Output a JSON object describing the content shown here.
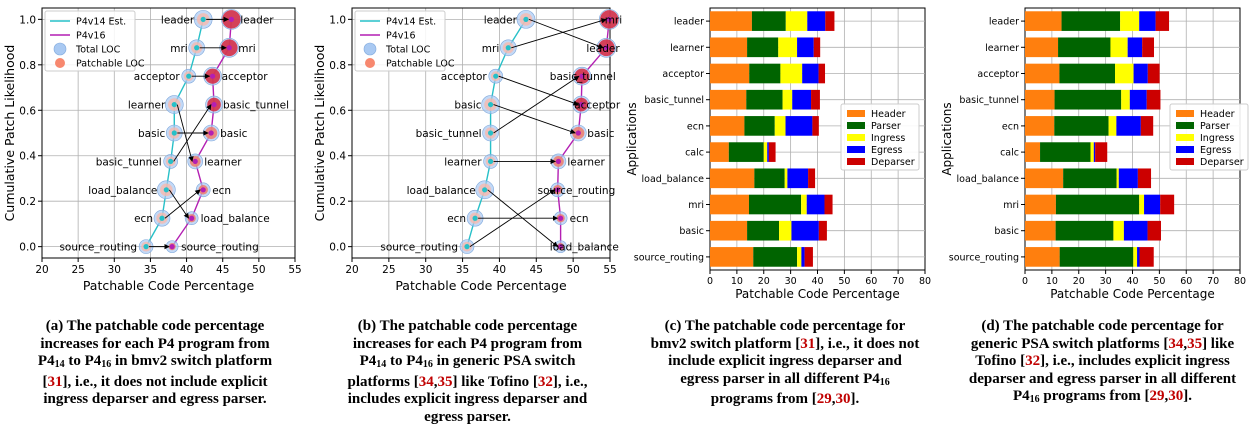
{
  "charts": [
    {
      "id": "a",
      "type": "scatter",
      "xlabel": "Patchable Code Percentage",
      "ylabel": "Cumulative Patch Likelihood",
      "xlim": [
        20,
        55
      ],
      "ylim": [
        -0.05,
        1.05
      ],
      "xticks": [
        20,
        25,
        30,
        35,
        40,
        45,
        50,
        55
      ],
      "yticks": [
        0.0,
        0.2,
        0.4,
        0.6,
        0.8,
        1.0
      ],
      "legend": [
        "P4v14 Est.",
        "P4v16",
        "Total LOC",
        "Patchable LOC"
      ],
      "lines": [
        {
          "name": "P4v14 Est.",
          "color": "#27c0c8",
          "x": [
            34.4,
            36.6,
            37.2,
            37.8,
            38.3,
            38.3,
            40.3,
            41.4,
            42.3
          ],
          "y": [
            0.0,
            0.125,
            0.25,
            0.375,
            0.5,
            0.625,
            0.75,
            0.875,
            1.0
          ]
        },
        {
          "name": "P4v16",
          "color": "#b31fb3",
          "x": [
            38.0,
            40.7,
            42.3,
            41.2,
            43.4,
            43.8,
            43.6,
            45.9,
            46.2
          ],
          "y": [
            0.0,
            0.125,
            0.25,
            0.375,
            0.5,
            0.625,
            0.75,
            0.875,
            1.0
          ]
        }
      ],
      "points": [
        {
          "label": "source_routing",
          "x1": 34.4,
          "x2": 38.0,
          "y": 0.0
        },
        {
          "label": "ecn",
          "x1": 36.6,
          "x2": 42.3,
          "y": 0.25
        },
        {
          "label": "load_balance",
          "x1": 37.2,
          "x2": 40.7,
          "y": 0.125
        },
        {
          "label": "basic_tunnel",
          "x1": 37.8,
          "x2": 43.8,
          "y": 0.625
        },
        {
          "label": "basic",
          "x1": 38.3,
          "x2": 43.4,
          "y": 0.5
        },
        {
          "label": "learner",
          "x1": 38.3,
          "x2": 41.2,
          "y": 0.375
        },
        {
          "label": "acceptor",
          "x1": 40.3,
          "x2": 43.6,
          "y": 0.75
        },
        {
          "label": "mri",
          "x1": 41.4,
          "x2": 45.9,
          "y": 0.875
        },
        {
          "label": "leader",
          "x1": 42.3,
          "x2": 46.2,
          "y": 1.0
        }
      ],
      "labels_left": [
        {
          "text": "leader",
          "y": 1.0
        },
        {
          "text": "mri",
          "y": 0.875
        },
        {
          "text": "acceptor",
          "y": 0.75
        },
        {
          "text": "learner",
          "y": 0.625
        },
        {
          "text": "basic",
          "y": 0.5
        },
        {
          "text": "basic_tunnel",
          "y": 0.375
        },
        {
          "text": "load_balance",
          "y": 0.25
        },
        {
          "text": "ecn",
          "y": 0.125
        },
        {
          "text": "source_routing",
          "y": 0.0
        }
      ],
      "labels_right": [
        {
          "text": "leader",
          "y": 1.0
        },
        {
          "text": "mri",
          "y": 0.875
        },
        {
          "text": "acceptor",
          "y": 0.75
        },
        {
          "text": "basic_tunnel",
          "y": 0.625
        },
        {
          "text": "basic",
          "y": 0.5
        },
        {
          "text": "learner",
          "y": 0.375
        },
        {
          "text": "ecn",
          "y": 0.25
        },
        {
          "text": "load_balance",
          "y": 0.125
        },
        {
          "text": "source_routing",
          "y": 0.0
        }
      ],
      "arrows": [
        {
          "x1": 42.3,
          "y1": 1.0,
          "x2": 46.2,
          "y2": 1.0
        },
        {
          "x1": 41.4,
          "y1": 0.875,
          "x2": 45.9,
          "y2": 0.875
        },
        {
          "x1": 40.3,
          "y1": 0.75,
          "x2": 43.6,
          "y2": 0.75
        },
        {
          "x1": 38.3,
          "y1": 0.625,
          "x2": 41.2,
          "y2": 0.375
        },
        {
          "x1": 38.3,
          "y1": 0.5,
          "x2": 43.4,
          "y2": 0.5
        },
        {
          "x1": 37.8,
          "y1": 0.375,
          "x2": 43.8,
          "y2": 0.625
        },
        {
          "x1": 37.2,
          "y1": 0.25,
          "x2": 40.7,
          "y2": 0.125
        },
        {
          "x1": 36.6,
          "y1": 0.125,
          "x2": 42.3,
          "y2": 0.25
        },
        {
          "x1": 34.4,
          "y1": 0.0,
          "x2": 38.0,
          "y2": 0.0
        }
      ]
    },
    {
      "id": "b",
      "type": "scatter",
      "xlabel": "Patchable Code Percentage",
      "ylabel": "Cumulative Patch Likelihood",
      "xlim": [
        20,
        55
      ],
      "ylim": [
        -0.05,
        1.05
      ],
      "xticks": [
        20,
        25,
        30,
        35,
        40,
        45,
        50,
        55
      ],
      "yticks": [
        0.0,
        0.2,
        0.4,
        0.6,
        0.8,
        1.0
      ],
      "legend": [
        "P4v14 Est.",
        "P4v16",
        "Total LOC",
        "Patchable LOC"
      ],
      "lines": [
        {
          "name": "P4v14 Est.",
          "color": "#27c0c8",
          "x": [
            35.6,
            36.7,
            38.0,
            38.8,
            38.8,
            38.8,
            39.5,
            41.2,
            43.6
          ],
          "y": [
            0.0,
            0.125,
            0.25,
            0.375,
            0.5,
            0.625,
            0.75,
            0.875,
            1.0
          ]
        },
        {
          "name": "P4v16",
          "color": "#b31fb3",
          "x": [
            48.3,
            48.3,
            47.9,
            48.0,
            50.7,
            51.1,
            51.2,
            54.5,
            54.9
          ],
          "y": [
            0.0,
            0.125,
            0.25,
            0.375,
            0.5,
            0.625,
            0.75,
            0.875,
            1.0
          ]
        }
      ],
      "labels_left": [
        {
          "text": "leader",
          "y": 1.0
        },
        {
          "text": "mri",
          "y": 0.875
        },
        {
          "text": "acceptor",
          "y": 0.75
        },
        {
          "text": "basic",
          "y": 0.625
        },
        {
          "text": "basic_tunnel",
          "y": 0.5
        },
        {
          "text": "learner",
          "y": 0.375
        },
        {
          "text": "load_balance",
          "y": 0.25
        },
        {
          "text": "ecn",
          "y": 0.125
        },
        {
          "text": "source_routing",
          "y": 0.0
        }
      ],
      "labels_right": [
        {
          "text": "mri",
          "y": 1.0
        },
        {
          "text": "leader",
          "y": 0.875
        },
        {
          "text": "basic_tunnel",
          "y": 0.75
        },
        {
          "text": "acceptor",
          "y": 0.625
        },
        {
          "text": "basic",
          "y": 0.5
        },
        {
          "text": "learner",
          "y": 0.375
        },
        {
          "text": "source_routing",
          "y": 0.25
        },
        {
          "text": "ecn",
          "y": 0.125
        },
        {
          "text": "load_balance",
          "y": 0.0
        }
      ],
      "arrows": [
        {
          "x1": 43.6,
          "y1": 1.0,
          "x2": 54.5,
          "y2": 0.875
        },
        {
          "x1": 41.2,
          "y1": 0.875,
          "x2": 54.9,
          "y2": 1.0
        },
        {
          "x1": 39.5,
          "y1": 0.75,
          "x2": 51.1,
          "y2": 0.625
        },
        {
          "x1": 38.8,
          "y1": 0.625,
          "x2": 50.7,
          "y2": 0.5
        },
        {
          "x1": 38.8,
          "y1": 0.5,
          "x2": 51.2,
          "y2": 0.75
        },
        {
          "x1": 38.8,
          "y1": 0.375,
          "x2": 48.0,
          "y2": 0.375
        },
        {
          "x1": 38.0,
          "y1": 0.25,
          "x2": 48.3,
          "y2": 0.0
        },
        {
          "x1": 36.7,
          "y1": 0.125,
          "x2": 48.3,
          "y2": 0.125
        },
        {
          "x1": 35.6,
          "y1": 0.0,
          "x2": 47.9,
          "y2": 0.25
        }
      ]
    },
    {
      "id": "c",
      "type": "bar",
      "orientation": "horizontal-stacked",
      "xlabel": "Patchable Code Percentage",
      "ylabel": "Applications",
      "xlim": [
        0,
        80
      ],
      "xticks": [
        0,
        10,
        20,
        30,
        40,
        50,
        60,
        70,
        80
      ],
      "categories": [
        "leader",
        "learner",
        "acceptor",
        "basic_tunnel",
        "ecn",
        "calc",
        "load_balance",
        "mri",
        "basic",
        "source_routing"
      ],
      "series": [
        {
          "name": "Header",
          "color": "#ff7f0e",
          "values": [
            15.6,
            13.8,
            14.6,
            13.5,
            12.8,
            7.0,
            16.5,
            14.5,
            13.8,
            16.1
          ]
        },
        {
          "name": "Parser",
          "color": "#006400",
          "values": [
            12.6,
            11.6,
            11.6,
            13.5,
            11.3,
            13.0,
            11.3,
            19.4,
            11.9,
            16.3
          ]
        },
        {
          "name": "Ingress",
          "color": "#ffff00",
          "values": [
            8.0,
            7.0,
            8.1,
            3.6,
            4.0,
            1.3,
            1.0,
            2.1,
            4.6,
            1.6
          ]
        },
        {
          "name": "Egress",
          "color": "#0000ff",
          "values": [
            6.7,
            6.2,
            6.1,
            7.0,
            10.0,
            0.6,
            7.7,
            6.6,
            10.2,
            1.2
          ]
        },
        {
          "name": "Deparser",
          "color": "#cc0000",
          "values": [
            3.4,
            2.4,
            2.4,
            3.3,
            2.4,
            2.5,
            2.6,
            3.0,
            3.0,
            3.1
          ]
        }
      ]
    },
    {
      "id": "d",
      "type": "bar",
      "orientation": "horizontal-stacked",
      "xlabel": "Patchable Code Percentage",
      "ylabel": "Applications",
      "xlim": [
        0,
        80
      ],
      "xticks": [
        0,
        10,
        20,
        30,
        40,
        50,
        60,
        70,
        80
      ],
      "categories": [
        "leader",
        "learner",
        "acceptor",
        "basic_tunnel",
        "ecn",
        "calc",
        "load_balance",
        "mri",
        "basic",
        "source_routing"
      ],
      "series": [
        {
          "name": "Header",
          "color": "#ff7f0e",
          "values": [
            13.6,
            12.3,
            12.8,
            11.0,
            10.9,
            5.6,
            14.2,
            11.5,
            11.4,
            12.9
          ]
        },
        {
          "name": "Parser",
          "color": "#006400",
          "values": [
            21.8,
            19.5,
            20.7,
            24.8,
            20.2,
            18.8,
            19.9,
            31.0,
            21.5,
            27.4
          ]
        },
        {
          "name": "Ingress",
          "color": "#ffff00",
          "values": [
            7.1,
            6.4,
            6.9,
            3.2,
            2.9,
            1.2,
            0.8,
            1.8,
            3.9,
            1.4
          ]
        },
        {
          "name": "Egress",
          "color": "#0000ff",
          "values": [
            6.1,
            5.4,
            5.3,
            6.3,
            9.1,
            0.5,
            7.1,
            6.0,
            8.8,
            0.9
          ]
        },
        {
          "name": "Deparser",
          "color": "#cc0000",
          "values": [
            5.0,
            4.4,
            4.4,
            5.1,
            4.6,
            4.5,
            4.9,
            5.2,
            5.0,
            5.3
          ]
        }
      ]
    }
  ],
  "captions": {
    "a": {
      "p1": "(a) The patchable code percentage increases for each P4 program from P4",
      "s1": "14",
      "p2": " to P4",
      "s2": "16",
      "p3": " in bmv2 switch platform [",
      "r1": "31",
      "p4": "], i.e., it does not include explicit ingress deparser and egress parser."
    },
    "b": {
      "p1": "(b) The patchable code percentage increases for each P4 program from P4",
      "s1": "14",
      "p2": " to P4",
      "s2": "16",
      "p3": " in generic PSA switch platforms [",
      "r1": "34",
      "c1": ",",
      "r2": "35",
      "p4": "] like Tofino [",
      "r3": "32",
      "p5": "], i.e., includes explicit ingress deparser and egress parser."
    },
    "c": {
      "p1": "(c) The patchable code percentage for bmv2 switch platform [",
      "r1": "31",
      "p2": "], i.e., it does not include explicit ingress deparser and egress parser in all different P4",
      "s1": "16",
      "p3": " programs from [",
      "r2": "29",
      "c1": ",",
      "r3": "30",
      "p4": "]."
    },
    "d": {
      "p1": "(d) The patchable code percentage for generic PSA switch platforms [",
      "r1": "34",
      "c1": ",",
      "r2": "35",
      "p2": "] like Tofino [",
      "r3": "32",
      "p3": "], i.e., includes explicit ingress deparser and egress parser in all different P4",
      "s1": "16",
      "p4": " programs from [",
      "r4": "29",
      "c2": ",",
      "r5": "30",
      "p5": "]."
    }
  }
}
